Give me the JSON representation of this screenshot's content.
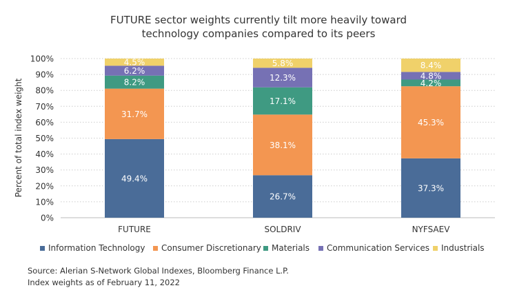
{
  "chart_data": {
    "type": "bar",
    "stacked": true,
    "title": "FUTURE sector weights currently tilt more heavily toward technology companies compared to its peers",
    "title_lines": [
      "FUTURE sector weights currently tilt more heavily toward",
      "technology companies compared to its peers"
    ],
    "ylabel": "Percent of total index weight",
    "ylim": [
      0,
      100
    ],
    "yticks": [
      "0%",
      "10%",
      "20%",
      "30%",
      "40%",
      "50%",
      "60%",
      "70%",
      "80%",
      "90%",
      "100%"
    ],
    "grid": true,
    "legend_position": "bottom",
    "categories": [
      "FUTURE",
      "SOLDRIV",
      "NYFSAEV"
    ],
    "series": [
      {
        "name": "Information Technology",
        "color": "#4a6c98",
        "values": [
          49.4,
          26.7,
          37.3
        ]
      },
      {
        "name": "Consumer Discretionary",
        "color": "#f39651",
        "values": [
          31.7,
          38.1,
          45.3
        ]
      },
      {
        "name": "Materials",
        "color": "#3f9a82",
        "values": [
          8.2,
          17.1,
          4.2
        ]
      },
      {
        "name": "Communication Services",
        "color": "#7671b4",
        "values": [
          6.2,
          12.3,
          4.8
        ]
      },
      {
        "name": "Industrials",
        "color": "#f0d16a",
        "values": [
          4.5,
          5.8,
          8.4
        ]
      }
    ],
    "labels": [
      [
        "49.4%",
        "26.7%",
        "37.3%"
      ],
      [
        "31.7%",
        "38.1%",
        "45.3%"
      ],
      [
        "8.2%",
        "17.1%",
        "4.2%"
      ],
      [
        "6.2%",
        "12.3%",
        "4.8%"
      ],
      [
        "4.5%",
        "5.8%",
        "8.4%"
      ]
    ]
  },
  "source": {
    "line1": "Source: Alerian S-Network Global Indexes, Bloomberg Finance L.P.",
    "line2": "Index weights as of February 11, 2022"
  }
}
